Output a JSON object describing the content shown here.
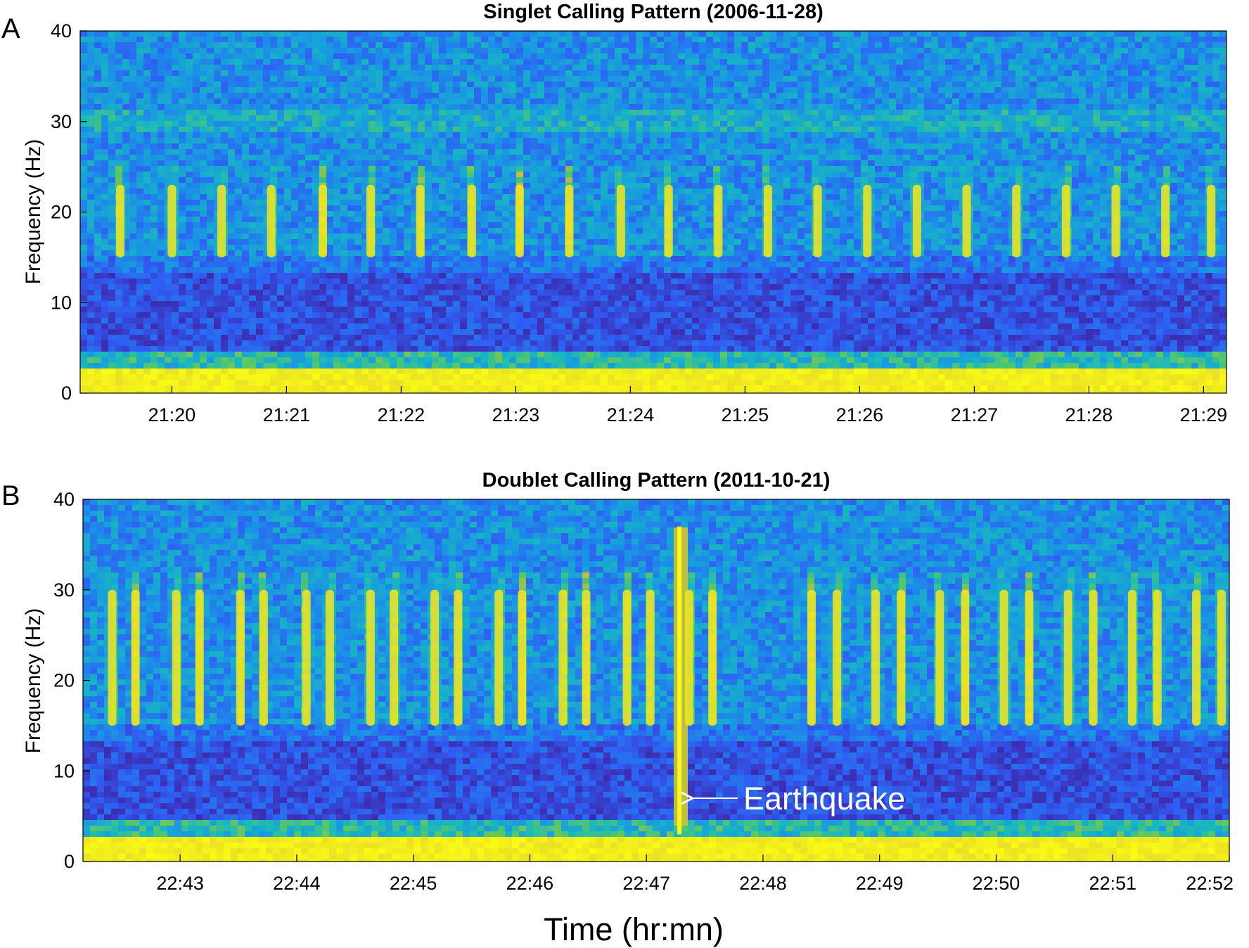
{
  "chart_data": [
    {
      "type": "heatmap",
      "panel_label": "A",
      "title": "Singlet Calling Pattern (2006-11-28)",
      "ylabel": "Frequency (Hz)",
      "ylim": [
        0,
        40
      ],
      "yticks": [
        "0",
        "10",
        "20",
        "30",
        "40"
      ],
      "xlim": [
        "21:19:12",
        "21:29:12"
      ],
      "x_tick_values": [
        "21:20",
        "21:21",
        "21:22",
        "21:23",
        "21:24",
        "21:25",
        "21:26",
        "21:27",
        "21:28",
        "21:29"
      ],
      "colormap": [
        "#3e26a8",
        "#2f5df3",
        "#1a93e6",
        "#18b8c0",
        "#59c863",
        "#d6bb3a",
        "#f9fb15"
      ],
      "low_frequency_noise_band_hz": [
        0,
        2.5
      ],
      "call_band_hz": [
        15,
        23
      ],
      "harmonic_band_hz": 30,
      "call_times": [
        "21:19:33",
        "21:20:00",
        "21:20:26",
        "21:20:52",
        "21:21:19",
        "21:21:44",
        "21:22:10",
        "21:22:37",
        "21:23:02",
        "21:23:28",
        "21:23:55",
        "21:24:20",
        "21:24:46",
        "21:25:12",
        "21:25:38",
        "21:26:04",
        "21:26:30",
        "21:26:56",
        "21:27:22",
        "21:27:48",
        "21:28:14",
        "21:28:40",
        "21:29:04"
      ]
    },
    {
      "type": "heatmap",
      "panel_label": "B",
      "title": "Doublet Calling Pattern (2011-10-21)",
      "ylabel": "Frequency (Hz)",
      "ylim": [
        0,
        40
      ],
      "yticks": [
        "0",
        "10",
        "20",
        "30",
        "40"
      ],
      "xlim": [
        "22:42:10",
        "22:52:00"
      ],
      "x_tick_values": [
        "22:43",
        "22:44",
        "22:45",
        "22:46",
        "22:47",
        "22:48",
        "22:49",
        "22:50",
        "22:51",
        "22:52"
      ],
      "colormap": [
        "#3e26a8",
        "#2f5df3",
        "#1a93e6",
        "#18b8c0",
        "#59c863",
        "#d6bb3a",
        "#f9fb15"
      ],
      "low_frequency_noise_band_hz": [
        0,
        2.5
      ],
      "call_band_hz": [
        15,
        30
      ],
      "call_times": [
        "22:42:25",
        "22:42:37",
        "22:42:58",
        "22:43:10",
        "22:43:31",
        "22:43:43",
        "22:44:05",
        "22:44:17",
        "22:44:38",
        "22:44:50",
        "22:45:11",
        "22:45:23",
        "22:45:44",
        "22:45:56",
        "22:46:17",
        "22:46:29",
        "22:46:50",
        "22:47:02",
        "22:47:22",
        "22:47:34",
        "22:48:25",
        "22:48:38",
        "22:48:58",
        "22:49:11",
        "22:49:31",
        "22:49:44",
        "22:50:04",
        "22:50:17",
        "22:50:37",
        "22:50:50",
        "22:51:10",
        "22:51:23",
        "22:51:43",
        "22:51:56"
      ],
      "earthquake_time": "22:47:17",
      "annotations": [
        {
          "text": "Earthquake",
          "time": "22:47:17",
          "frequency_hz": 7
        }
      ],
      "xlabel": "Time (hr:mn)"
    }
  ]
}
